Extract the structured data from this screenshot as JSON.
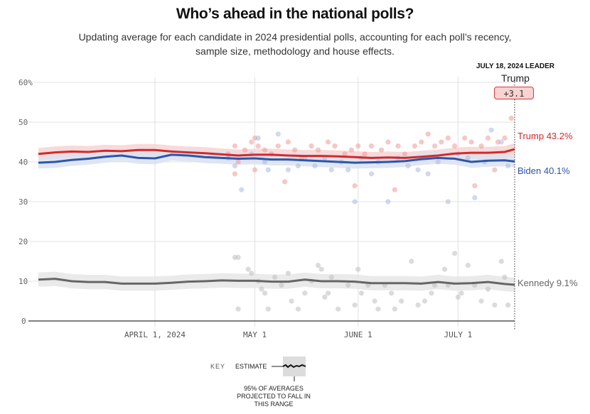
{
  "header": {
    "title": "Who’s ahead in the national polls?",
    "subtitle": "Updating average for each candidate in 2024 presidential polls, accounting for each poll’s recency, sample size, methodology and house effects."
  },
  "leader": {
    "heading": "JULY 18, 2024 LEADER",
    "name": "Trump",
    "margin": "+3.1"
  },
  "end_labels": {
    "trump": "Trump 43.2%",
    "biden": "Biden 40.1%",
    "kennedy": "Kennedy 9.1%"
  },
  "key": {
    "label": "KEY",
    "estimate": "ESTIMATE",
    "range_note": [
      "95% OF AVERAGES",
      "PROJECTED TO FALL IN",
      "THIS RANGE"
    ]
  },
  "colors": {
    "trump": "#d22a2a",
    "biden": "#2d56a8",
    "kennedy": "#666666",
    "trump_band": "#f6d4d3",
    "biden_band": "#dbe2f1",
    "kennedy_band": "#e6e6e6"
  },
  "chart_data": {
    "type": "line",
    "title": "Who’s ahead in the national polls?",
    "xlabel": "",
    "ylabel": "",
    "ylim": [
      0,
      60
    ],
    "yticks": [
      0,
      10,
      20,
      30,
      40,
      50,
      60
    ],
    "ytick_labels": [
      "0",
      "10",
      "20",
      "30",
      "40",
      "50",
      "60%"
    ],
    "x_range_days": [
      -35,
      108
    ],
    "x_origin": "April 1, 2024 = day 0",
    "xticks": [
      {
        "day": 0,
        "label": "APRIL 1, 2024"
      },
      {
        "day": 30,
        "label": "MAY 1"
      },
      {
        "day": 61,
        "label": "JUNE 1"
      },
      {
        "day": 91,
        "label": "JULY 1"
      }
    ],
    "grid": true,
    "legend": "end-of-line labels",
    "x": [
      -35,
      -30,
      -25,
      -20,
      -15,
      -10,
      -5,
      0,
      5,
      10,
      15,
      20,
      25,
      30,
      35,
      40,
      45,
      50,
      55,
      60,
      65,
      70,
      75,
      80,
      85,
      90,
      95,
      100,
      105,
      108
    ],
    "series": [
      {
        "name": "Trump",
        "band": 1.5,
        "values": [
          42.0,
          42.4,
          42.6,
          42.5,
          42.8,
          42.7,
          43.0,
          43.0,
          42.6,
          42.4,
          42.2,
          41.9,
          41.6,
          41.8,
          41.8,
          41.6,
          41.5,
          41.5,
          41.4,
          41.2,
          41.0,
          41.1,
          41.0,
          41.3,
          41.6,
          42.1,
          42.3,
          42.3,
          42.5,
          43.2
        ]
      },
      {
        "name": "Biden",
        "band": 1.5,
        "values": [
          39.8,
          40.0,
          40.5,
          40.8,
          41.3,
          41.6,
          41.0,
          40.9,
          41.8,
          41.6,
          41.2,
          41.0,
          40.8,
          40.9,
          40.6,
          40.6,
          40.4,
          40.2,
          40.0,
          39.8,
          39.9,
          40.0,
          40.2,
          40.7,
          41.0,
          40.8,
          40.0,
          40.3,
          40.4,
          40.1
        ]
      },
      {
        "name": "Kennedy",
        "band": 1.8,
        "values": [
          10.4,
          10.6,
          10.0,
          9.8,
          9.8,
          9.4,
          9.4,
          9.4,
          9.6,
          9.9,
          10.0,
          10.2,
          10.1,
          10.1,
          9.9,
          9.9,
          10.4,
          10.0,
          10.0,
          9.9,
          9.5,
          9.5,
          9.5,
          9.4,
          9.8,
          9.4,
          9.5,
          9.8,
          9.3,
          9.1
        ]
      }
    ],
    "poll_points": {
      "Trump": [
        [
          22,
          42
        ],
        [
          24,
          44
        ],
        [
          25,
          40
        ],
        [
          27,
          43
        ],
        [
          29,
          45
        ],
        [
          30,
          46
        ],
        [
          31,
          44
        ],
        [
          33,
          43
        ],
        [
          35,
          42
        ],
        [
          37,
          44
        ],
        [
          40,
          45
        ],
        [
          42,
          43
        ],
        [
          44,
          41
        ],
        [
          47,
          44
        ],
        [
          49,
          43
        ],
        [
          52,
          45
        ],
        [
          54,
          44
        ],
        [
          57,
          42
        ],
        [
          59,
          43
        ],
        [
          61,
          44
        ],
        [
          63,
          42
        ],
        [
          65,
          44
        ],
        [
          68,
          43
        ],
        [
          70,
          45
        ],
        [
          73,
          44
        ],
        [
          75,
          42
        ],
        [
          78,
          44
        ],
        [
          80,
          45
        ],
        [
          82,
          47
        ],
        [
          84,
          44
        ],
        [
          86,
          45
        ],
        [
          88,
          46
        ],
        [
          90,
          44
        ],
        [
          93,
          46
        ],
        [
          95,
          45
        ],
        [
          98,
          44
        ],
        [
          100,
          46
        ],
        [
          103,
          45
        ],
        [
          105,
          46
        ],
        [
          107,
          51
        ],
        [
          24,
          37
        ],
        [
          30,
          38
        ],
        [
          39,
          35
        ],
        [
          60,
          34
        ],
        [
          72,
          33
        ],
        [
          96,
          34
        ],
        [
          102,
          38
        ]
      ],
      "Biden": [
        [
          22,
          41
        ],
        [
          24,
          39
        ],
        [
          26,
          33
        ],
        [
          29,
          42
        ],
        [
          31,
          46
        ],
        [
          33,
          40
        ],
        [
          34,
          38
        ],
        [
          37,
          47
        ],
        [
          40,
          38
        ],
        [
          43,
          39
        ],
        [
          45,
          41
        ],
        [
          48,
          39
        ],
        [
          51,
          41
        ],
        [
          53,
          38
        ],
        [
          56,
          40
        ],
        [
          58,
          38
        ],
        [
          60,
          30
        ],
        [
          62,
          41
        ],
        [
          65,
          37
        ],
        [
          67,
          40
        ],
        [
          70,
          30
        ],
        [
          73,
          41
        ],
        [
          76,
          39
        ],
        [
          79,
          38
        ],
        [
          82,
          37
        ],
        [
          85,
          40
        ],
        [
          88,
          30
        ],
        [
          91,
          42
        ],
        [
          94,
          41
        ],
        [
          96,
          31
        ],
        [
          99,
          40
        ],
        [
          101,
          48
        ],
        [
          104,
          45
        ],
        [
          106,
          39
        ]
      ],
      "Kennedy": [
        [
          24,
          16
        ],
        [
          25,
          16
        ],
        [
          25,
          3
        ],
        [
          28,
          13
        ],
        [
          29,
          12
        ],
        [
          31,
          10
        ],
        [
          32,
          8
        ],
        [
          33,
          7
        ],
        [
          34,
          3
        ],
        [
          36,
          11
        ],
        [
          38,
          9
        ],
        [
          40,
          12
        ],
        [
          41,
          5
        ],
        [
          43,
          3
        ],
        [
          45,
          7
        ],
        [
          47,
          10
        ],
        [
          49,
          14
        ],
        [
          50,
          13
        ],
        [
          51,
          6
        ],
        [
          52,
          7
        ],
        [
          53,
          11
        ],
        [
          55,
          3
        ],
        [
          58,
          9
        ],
        [
          60,
          4
        ],
        [
          61,
          13
        ],
        [
          62,
          7
        ],
        [
          64,
          9
        ],
        [
          66,
          5
        ],
        [
          67,
          3
        ],
        [
          69,
          9
        ],
        [
          71,
          7
        ],
        [
          72,
          3
        ],
        [
          74,
          5
        ],
        [
          77,
          15
        ],
        [
          79,
          4
        ],
        [
          81,
          5
        ],
        [
          83,
          7
        ],
        [
          84,
          9
        ],
        [
          87,
          13
        ],
        [
          88,
          9
        ],
        [
          90,
          17
        ],
        [
          91,
          6
        ],
        [
          92,
          7
        ],
        [
          94,
          14
        ],
        [
          96,
          9
        ],
        [
          98,
          5
        ],
        [
          100,
          8
        ],
        [
          102,
          4
        ],
        [
          104,
          15
        ],
        [
          105,
          11
        ],
        [
          106,
          4
        ]
      ]
    }
  }
}
